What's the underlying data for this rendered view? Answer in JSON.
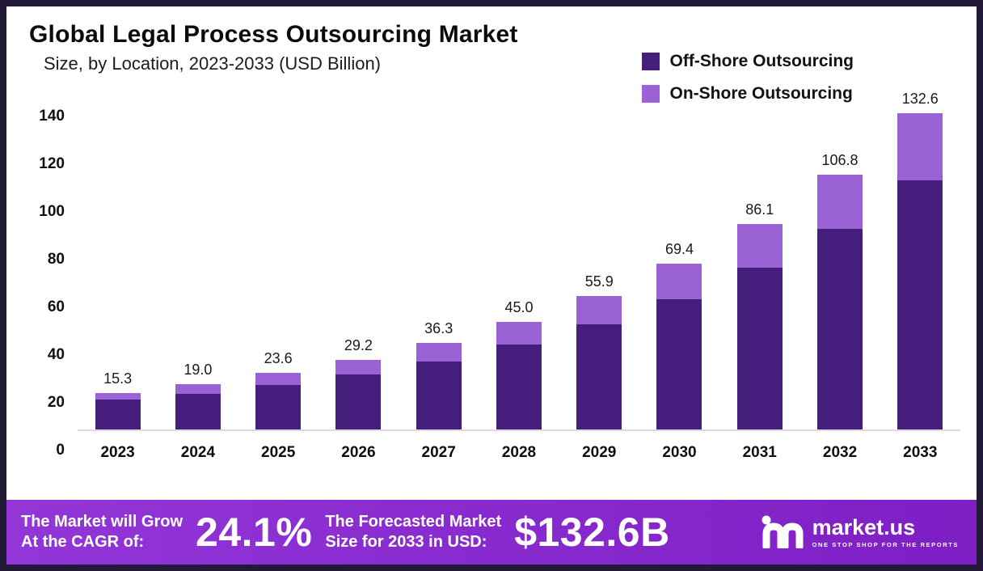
{
  "header": {
    "title": "Global Legal Process Outsourcing Market",
    "subtitle": "Size, by Location, 2023-2033 (USD Billion)"
  },
  "legend": [
    {
      "label": "Off-Shore Outsourcing",
      "color": "#451d7c"
    },
    {
      "label": "On-Shore Outsourcing",
      "color": "#9a62d4"
    }
  ],
  "chart_data": {
    "type": "bar",
    "stacked": true,
    "title": "Global Legal Process Outsourcing Market Size, by Location, 2023-2033 (USD Billion)",
    "categories": [
      "2023",
      "2024",
      "2025",
      "2026",
      "2027",
      "2028",
      "2029",
      "2030",
      "2031",
      "2032",
      "2033"
    ],
    "series": [
      {
        "name": "Off-Shore Outsourcing",
        "color": "#451d7c",
        "values": [
          12.5,
          15.0,
          18.6,
          23.0,
          28.6,
          35.5,
          44.0,
          54.7,
          67.9,
          84.2,
          104.5
        ]
      },
      {
        "name": "On-Shore Outsourcing",
        "color": "#9a62d4",
        "values": [
          2.8,
          4.0,
          5.0,
          6.2,
          7.7,
          9.5,
          11.9,
          14.7,
          18.2,
          22.6,
          28.1
        ]
      }
    ],
    "totals": [
      15.3,
      19.0,
      23.6,
      29.2,
      36.3,
      45.0,
      55.9,
      69.4,
      86.1,
      106.8,
      132.6
    ],
    "total_labels": [
      "15.3",
      "19.0",
      "23.6",
      "29.2",
      "36.3",
      "45.0",
      "55.9",
      "69.4",
      "86.1",
      "106.8",
      "132.6"
    ],
    "xlabel": "",
    "ylabel": "",
    "ylim": [
      0,
      140
    ],
    "yticks": [
      0,
      20,
      40,
      60,
      80,
      100,
      120,
      140
    ],
    "grid": false,
    "legend_position": "top-right"
  },
  "footer": {
    "background_from": "#9336d8",
    "background_to": "#7d1fc4",
    "cagr_line1": "The Market will Grow",
    "cagr_line2": "At the CAGR of:",
    "cagr_value": "24.1%",
    "forecast_line1": "The Forecasted Market",
    "forecast_line2": "Size for 2033 in USD:",
    "forecast_value": "$132.6B",
    "logo_name": "market.us",
    "logo_tagline": "ONE STOP SHOP FOR THE REPORTS"
  }
}
